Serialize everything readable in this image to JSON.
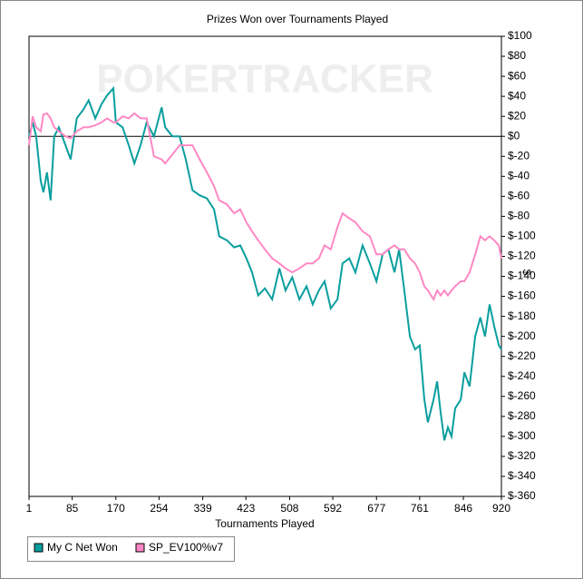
{
  "chart_data": {
    "type": "line",
    "title": "Prizes Won over Tournaments Played",
    "watermark": "POKERTRACKER",
    "x_label": "Tournaments Played",
    "y_label": "$",
    "x": [
      1,
      8,
      15,
      24,
      29,
      36,
      43,
      50,
      59,
      72,
      82,
      94,
      107,
      117,
      130,
      142,
      153,
      165,
      170,
      183,
      195,
      206,
      218,
      230,
      244,
      259,
      266,
      280,
      294,
      306,
      319,
      333,
      347,
      361,
      371,
      386,
      400,
      412,
      424,
      435,
      447,
      460,
      474,
      488,
      500,
      513,
      527,
      541,
      553,
      565,
      576,
      588,
      601,
      611,
      624,
      636,
      650,
      664,
      677,
      689,
      700,
      712,
      721,
      731,
      742,
      752,
      761,
      770,
      777,
      788,
      795,
      802,
      809,
      816,
      823,
      830,
      841,
      848,
      858,
      869,
      879,
      888,
      897,
      906,
      915,
      920
    ],
    "series": [
      {
        "name": "My C Net Won",
        "color": "#0a9e9e",
        "values": [
          0,
          14,
          0,
          -45,
          -56,
          -36,
          -64,
          0,
          9,
          -9,
          -23,
          18,
          27,
          36,
          18,
          32,
          41,
          48,
          14,
          9,
          -9,
          -27,
          -9,
          14,
          0,
          29,
          9,
          0,
          0,
          -23,
          -54,
          -59,
          -62,
          -73,
          -100,
          -104,
          -111,
          -109,
          -122,
          -136,
          -159,
          -152,
          -163,
          -132,
          -154,
          -141,
          -163,
          -150,
          -168,
          -154,
          -145,
          -172,
          -163,
          -127,
          -122,
          -136,
          -109,
          -127,
          -145,
          -118,
          -113,
          -136,
          -113,
          -154,
          -200,
          -213,
          -209,
          -263,
          -286,
          -263,
          -245,
          -277,
          -304,
          -291,
          -300,
          -272,
          -263,
          -236,
          -250,
          -200,
          -181,
          -200,
          -168,
          -190,
          -209,
          -213
        ]
      },
      {
        "name": "SP_EV100%v7",
        "color": "#ff88c4",
        "values": [
          -9,
          20,
          9,
          5,
          22,
          23,
          18,
          9,
          5,
          0,
          -2,
          5,
          9,
          9,
          11,
          14,
          18,
          14,
          14,
          20,
          18,
          23,
          18,
          18,
          -20,
          -23,
          -27,
          -18,
          -9,
          -9,
          -9,
          -23,
          -36,
          -50,
          -64,
          -68,
          -77,
          -73,
          -86,
          -95,
          -104,
          -113,
          -122,
          -127,
          -132,
          -136,
          -132,
          -127,
          -127,
          -122,
          -109,
          -113,
          -91,
          -77,
          -82,
          -86,
          -95,
          -100,
          -118,
          -118,
          -113,
          -109,
          -113,
          -113,
          -122,
          -127,
          -136,
          -150,
          -154,
          -163,
          -154,
          -159,
          -154,
          -159,
          -154,
          -150,
          -145,
          -145,
          -136,
          -118,
          -100,
          -104,
          -100,
          -104,
          -109,
          -122
        ]
      }
    ],
    "xlim": [
      1,
      920
    ],
    "xticks": [
      1,
      85,
      170,
      254,
      339,
      423,
      508,
      592,
      677,
      761,
      846,
      920
    ],
    "ylim": [
      -360,
      100
    ],
    "yticks": [
      {
        "value": 100,
        "label": "$100"
      },
      {
        "value": 80,
        "label": "$80"
      },
      {
        "value": 60,
        "label": "$60"
      },
      {
        "value": 40,
        "label": "$40"
      },
      {
        "value": 20,
        "label": "$20"
      },
      {
        "value": 0,
        "label": "$0"
      },
      {
        "value": -20,
        "label": "$-20"
      },
      {
        "value": -40,
        "label": "$-40"
      },
      {
        "value": -60,
        "label": "$-60"
      },
      {
        "value": -80,
        "label": "$-80"
      },
      {
        "value": -100,
        "label": "$-100"
      },
      {
        "value": -120,
        "label": "$-120"
      },
      {
        "value": -140,
        "label": "$-140"
      },
      {
        "value": -160,
        "label": "$-160"
      },
      {
        "value": -180,
        "label": "$-180"
      },
      {
        "value": -200,
        "label": "$-200"
      },
      {
        "value": -220,
        "label": "$-220"
      },
      {
        "value": -240,
        "label": "$-240"
      },
      {
        "value": -260,
        "label": "$-260"
      },
      {
        "value": -280,
        "label": "$-280"
      },
      {
        "value": -300,
        "label": "$-300"
      },
      {
        "value": -320,
        "label": "$-320"
      },
      {
        "value": -340,
        "label": "$-340"
      },
      {
        "value": -360,
        "label": "$-360"
      }
    ],
    "grid": false,
    "legend": "bottom-left"
  }
}
